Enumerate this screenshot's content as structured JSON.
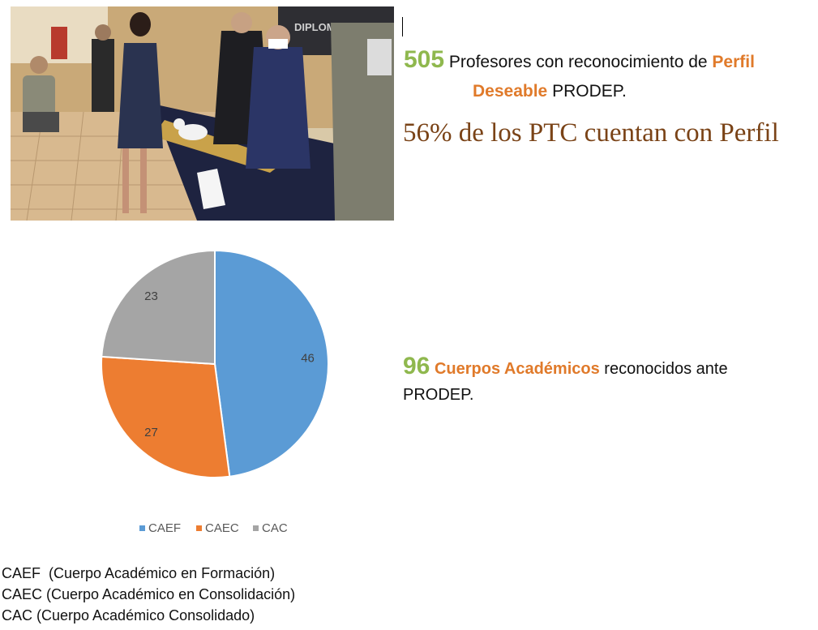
{
  "stats": {
    "profesores_number": "505",
    "profesores_text": "Profesores con reconocimiento de",
    "perfil_word": "Perfil",
    "deseable_word": "Deseable",
    "prodep_1": "PRODEP.",
    "ptc_text": "56% de los PTC cuentan con Perfil",
    "cuerpos_number": "96",
    "cuerpos_label": "Cuerpos Académicos",
    "cuerpos_text": "reconocidos ante",
    "prodep_2": "PRODEP."
  },
  "photo": {
    "banner_text": "DIPLOMADO DE"
  },
  "chart_data": {
    "type": "pie",
    "categories": [
      "CAEF",
      "CAEC",
      "CAC"
    ],
    "values": [
      46,
      27,
      23
    ],
    "colors": [
      "#5b9bd5",
      "#ed7d31",
      "#a5a5a5"
    ],
    "legend_position": "bottom",
    "start_angle_deg": 0,
    "direction": "clockwise"
  },
  "notes": [
    "CAEF  (Cuerpo Académico en Formación)",
    "CAEC (Cuerpo Académico en Consolidación)",
    "CAC (Cuerpo Académico Consolidado)"
  ]
}
